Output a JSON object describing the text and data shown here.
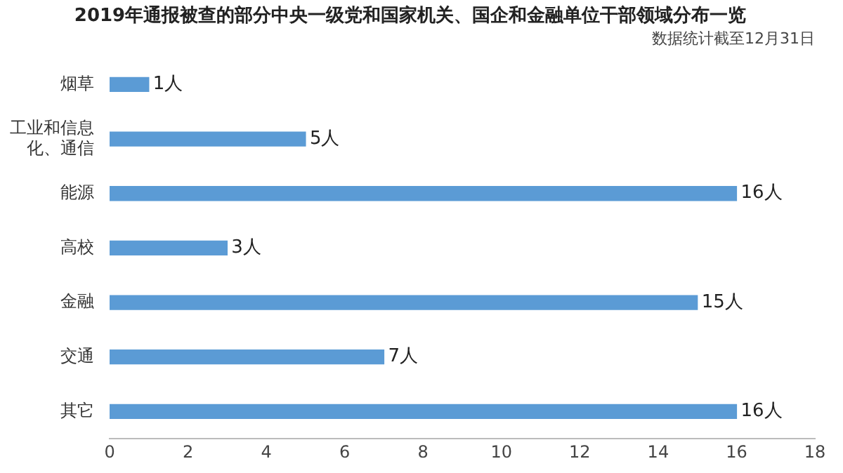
{
  "chart_data": {
    "type": "bar",
    "orientation": "horizontal",
    "title": "2019年通报被查的部分中央一级党和国家机关、国企和金融单位干部领域分布一览",
    "annotations": [
      "数据统计截至12月31日"
    ],
    "categories": [
      "烟草",
      "工业和信息化、通信",
      "能源",
      "高校",
      "金融",
      "交通",
      "其它"
    ],
    "values": [
      1,
      5,
      16,
      3,
      15,
      7,
      16
    ],
    "value_labels": [
      "1人",
      "5人",
      "16人",
      "3人",
      "15人",
      "7人",
      "16人"
    ],
    "color": "#5b9bd5",
    "xlim": [
      0,
      18
    ],
    "xticks": [
      0,
      2,
      4,
      6,
      8,
      10,
      12,
      14,
      16,
      18
    ],
    "grid": false,
    "legend": false
  }
}
